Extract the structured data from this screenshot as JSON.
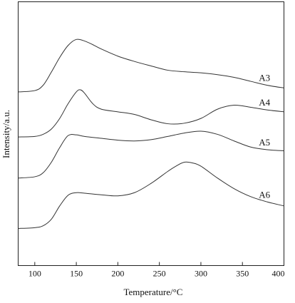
{
  "chart_data": {
    "type": "line",
    "xlabel": "Temperature/°C",
    "ylabel": "Intensity/a.u.",
    "xlim": [
      80,
      400
    ],
    "x_ticks": [
      "100",
      "150",
      "200",
      "250",
      "300",
      "350",
      "400"
    ],
    "y_ticks_labeled": false,
    "grid": false,
    "legend": "inline labels at right end of curves",
    "series": [
      {
        "name": "A3",
        "x": [
          80,
          100,
          110,
          120,
          130,
          140,
          150,
          160,
          170,
          180,
          200,
          220,
          240,
          260,
          280,
          300,
          320,
          340,
          360,
          380,
          400
        ],
        "y": [
          5.2,
          5.25,
          5.45,
          5.95,
          6.5,
          6.95,
          7.18,
          7.12,
          6.98,
          6.82,
          6.55,
          6.35,
          6.18,
          6.02,
          5.96,
          5.92,
          5.85,
          5.75,
          5.6,
          5.45,
          5.35
        ]
      },
      {
        "name": "A4",
        "x": [
          80,
          100,
          110,
          120,
          130,
          140,
          150,
          155,
          160,
          170,
          180,
          200,
          220,
          240,
          260,
          280,
          300,
          320,
          340,
          360,
          380,
          400
        ],
        "y": [
          3.5,
          3.52,
          3.6,
          3.8,
          4.2,
          4.75,
          5.2,
          5.28,
          5.15,
          4.75,
          4.55,
          4.45,
          4.35,
          4.15,
          4.0,
          4.02,
          4.2,
          4.55,
          4.7,
          4.62,
          4.52,
          4.45
        ]
      },
      {
        "name": "A5",
        "x": [
          80,
          100,
          110,
          120,
          130,
          140,
          150,
          160,
          180,
          200,
          220,
          240,
          260,
          280,
          300,
          320,
          340,
          360,
          380,
          400
        ],
        "y": [
          1.95,
          2.0,
          2.15,
          2.55,
          3.1,
          3.55,
          3.58,
          3.52,
          3.45,
          3.38,
          3.35,
          3.4,
          3.52,
          3.65,
          3.72,
          3.6,
          3.35,
          3.12,
          3.02,
          2.98
        ]
      },
      {
        "name": "A6",
        "x": [
          80,
          100,
          110,
          120,
          130,
          140,
          150,
          160,
          180,
          200,
          220,
          240,
          260,
          270,
          280,
          290,
          300,
          320,
          340,
          360,
          380,
          400
        ],
        "y": [
          0.05,
          0.08,
          0.15,
          0.4,
          0.9,
          1.3,
          1.4,
          1.38,
          1.32,
          1.28,
          1.4,
          1.75,
          2.2,
          2.4,
          2.55,
          2.52,
          2.4,
          1.95,
          1.55,
          1.25,
          1.05,
          0.9
        ]
      }
    ]
  }
}
